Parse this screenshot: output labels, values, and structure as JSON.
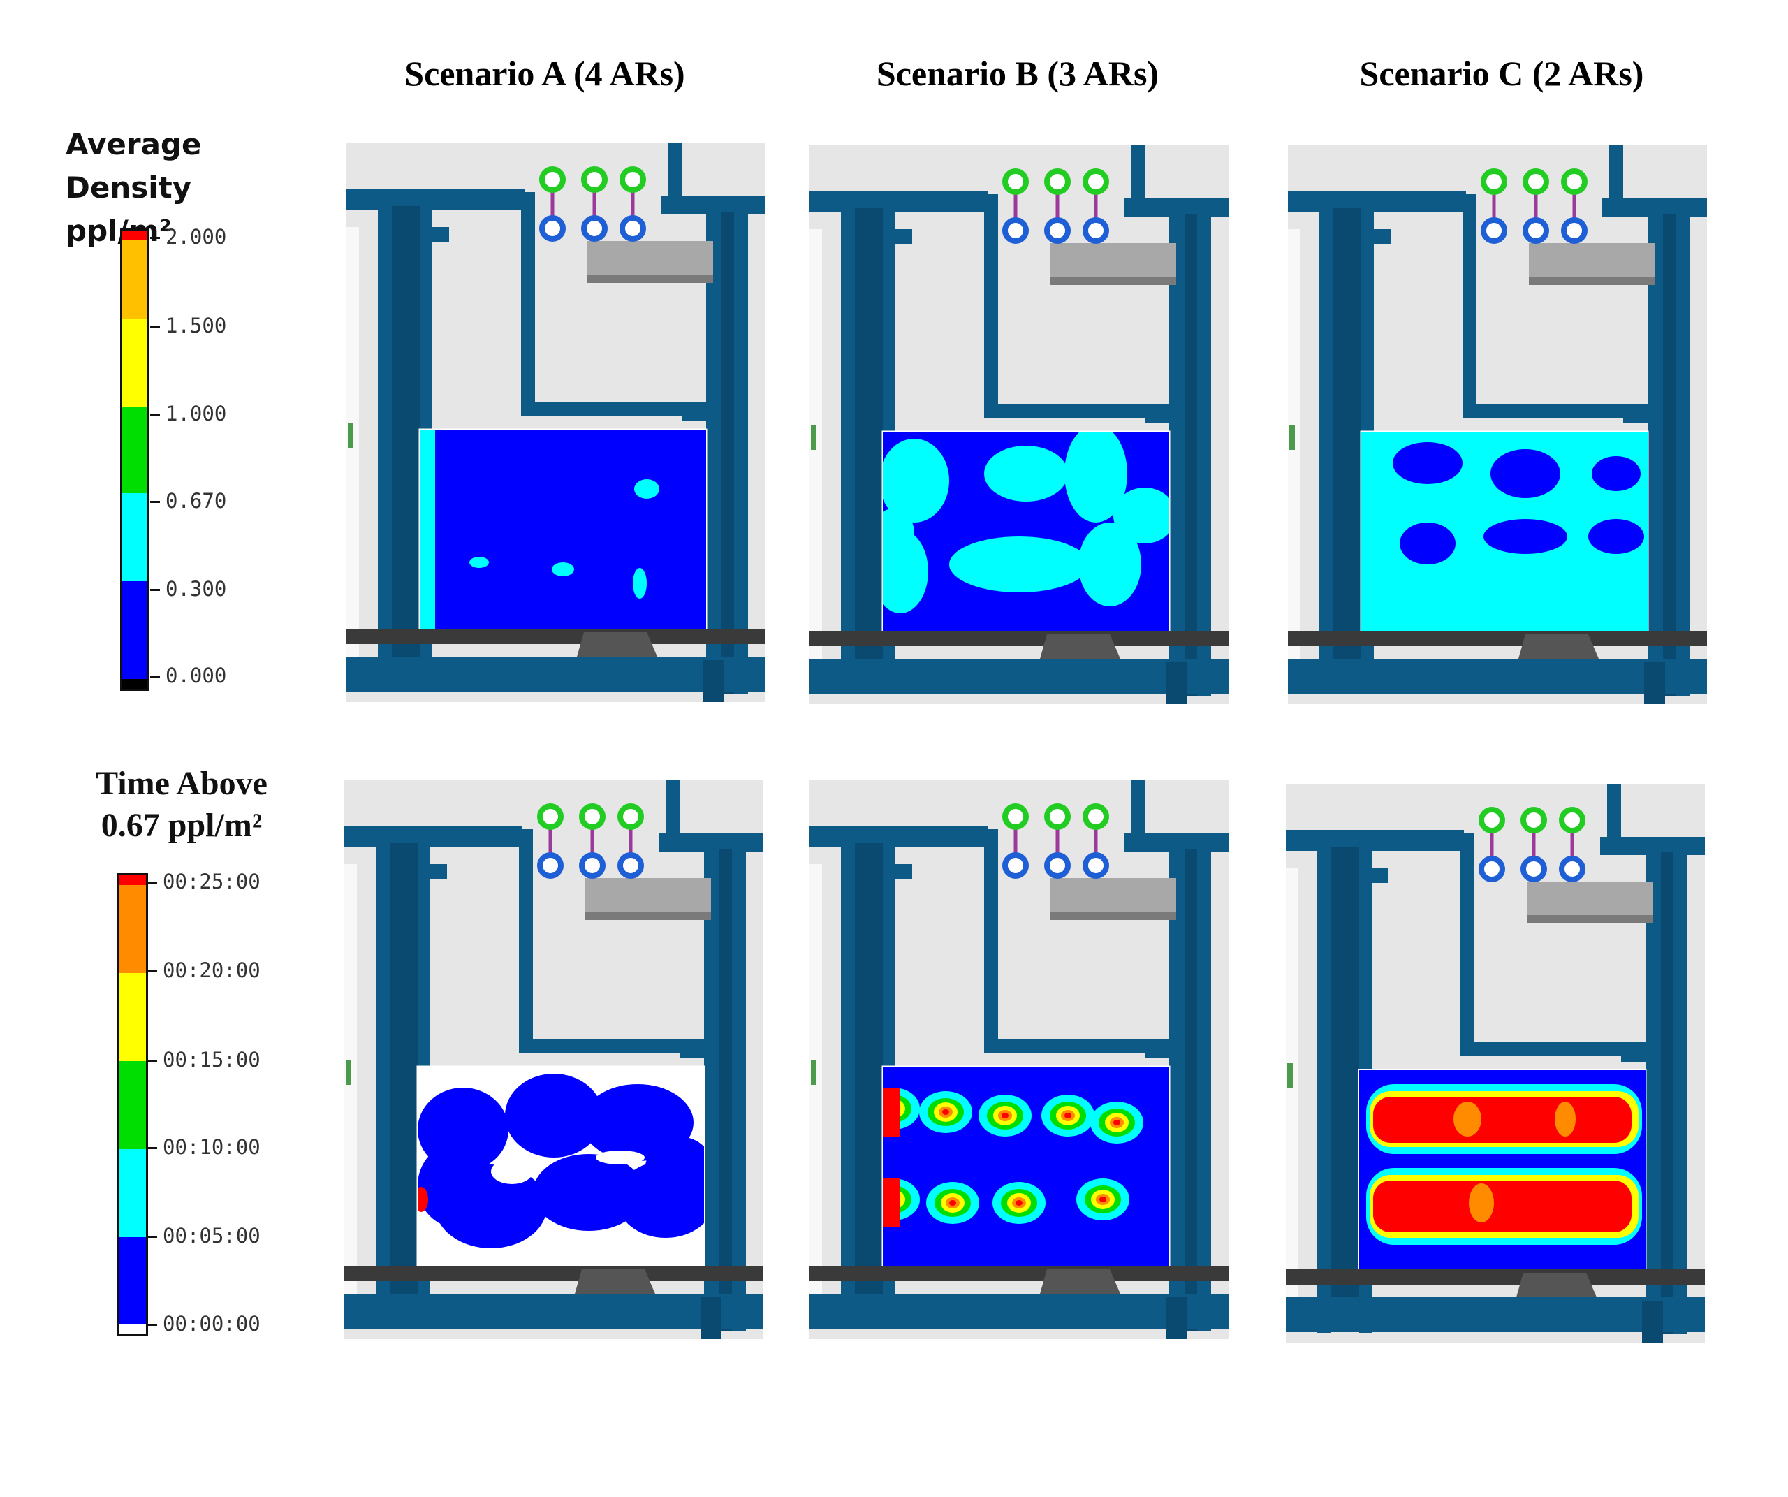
{
  "columns": [
    {
      "title": "Scenario A (4 ARs)"
    },
    {
      "title": "Scenario B (3 ARs)"
    },
    {
      "title": "Scenario C (2 ARs)"
    }
  ],
  "legends": {
    "density": {
      "title_line1": "Average",
      "title_line2": "Density ppl/m²",
      "ticks": [
        "2.000",
        "1.500",
        "1.000",
        "0.670",
        "0.300",
        "0.000"
      ],
      "colors": {
        "top": "#ff0000",
        "orange": "#ffc000",
        "yellow": "#ffff00",
        "green": "#00dd00",
        "cyan": "#00ffff",
        "blue": "#0000ff",
        "bottom": "#000000"
      }
    },
    "time": {
      "title_line1": "Time Above",
      "title_line2": "0.67 ppl/m²",
      "ticks": [
        "00:25:00",
        "00:20:00",
        "00:15:00",
        "00:10:00",
        "00:05:00",
        "00:00:00"
      ],
      "colors": {
        "top": "#ff0000",
        "orange": "#ff8c00",
        "yellow": "#ffff00",
        "green": "#00dd00",
        "cyan": "#00ffff",
        "blue": "#0000ff",
        "bottom": "#ffffff"
      }
    }
  },
  "panel_colors": {
    "structure": "#0e5a87",
    "floor": "#e6e6e6",
    "gate_top": "#22cc22",
    "gate_bottom": "#1f5fd6",
    "gate_link": "#9b3a9b",
    "bench": "#a8a8a8"
  }
}
